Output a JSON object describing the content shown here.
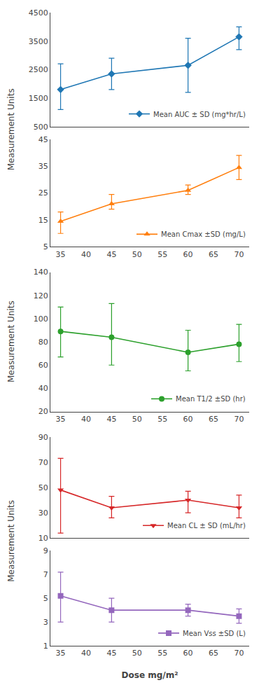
{
  "chart_data": [
    {
      "type": "line",
      "x": [
        35,
        45,
        60,
        70
      ],
      "xlim": [
        33,
        72
      ],
      "xticks": [
        35,
        40,
        45,
        50,
        55,
        60,
        65,
        70
      ],
      "ylim": [
        500,
        4500
      ],
      "yticks": [
        500,
        1500,
        2500,
        3500,
        4500
      ],
      "ylabel": "Measurement Units",
      "tick_labels": "y",
      "grid": false,
      "legend": "lower right",
      "series": [
        {
          "name": "Mean AUC ± SD (mg*hr/L)",
          "marker": "diamond",
          "values": [
            1800,
            2350,
            2650,
            3650
          ],
          "sd_upper": [
            2700,
            2900,
            3600,
            4000
          ],
          "sd_lower": [
            1100,
            1800,
            1700,
            3200
          ]
        }
      ]
    },
    {
      "type": "line",
      "x": [
        35,
        45,
        60,
        70
      ],
      "xlim": [
        33,
        72
      ],
      "xticks": [
        35,
        40,
        45,
        50,
        55,
        60,
        65,
        70
      ],
      "ylim": [
        5,
        45
      ],
      "yticks": [
        5,
        15,
        25,
        35,
        45
      ],
      "grid": false,
      "legend": "lower right",
      "series": [
        {
          "name": "Mean Cmax ±SD (mg/L)",
          "marker": "triangle-up",
          "values": [
            14.5,
            21,
            26,
            34.5
          ],
          "sd_upper": [
            18,
            24.5,
            28,
            39
          ],
          "sd_lower": [
            10,
            19,
            24.5,
            30
          ]
        }
      ]
    },
    {
      "type": "line",
      "x": [
        35,
        45,
        60,
        70
      ],
      "xlim": [
        33,
        72
      ],
      "xticks": [
        35,
        40,
        45,
        50,
        55,
        60,
        65,
        70
      ],
      "ylim": [
        20,
        140
      ],
      "yticks": [
        20,
        40,
        60,
        80,
        100,
        120,
        140
      ],
      "ylabel": "Measurement Units",
      "grid": false,
      "legend": "lower right",
      "series": [
        {
          "name": "Mean T1/2 ±SD (hr)",
          "marker": "circle",
          "values": [
            89,
            84,
            71,
            78
          ],
          "sd_upper": [
            110,
            113,
            90,
            95
          ],
          "sd_lower": [
            67,
            60,
            55,
            63
          ]
        }
      ]
    },
    {
      "type": "line",
      "x": [
        35,
        45,
        60,
        70
      ],
      "xlim": [
        33,
        72
      ],
      "xticks": [
        35,
        40,
        45,
        50,
        55,
        60,
        65,
        70
      ],
      "ylim": [
        10,
        90
      ],
      "yticks": [
        10,
        30,
        50,
        70,
        90
      ],
      "ylabel": "Measurement Units",
      "tick_labels": "y",
      "grid": false,
      "legend": "lower right",
      "series": [
        {
          "name": "Mean CL ± SD (mL/hr)",
          "marker": "triangle-down",
          "values": [
            48,
            34,
            40,
            34
          ],
          "sd_upper": [
            73,
            43,
            47,
            44
          ],
          "sd_lower": [
            14,
            26,
            30,
            26
          ]
        }
      ]
    },
    {
      "type": "line",
      "x": [
        35,
        45,
        60,
        70
      ],
      "xlim": [
        33,
        72
      ],
      "xticks": [
        35,
        40,
        45,
        50,
        55,
        60,
        65,
        70
      ],
      "ylim": [
        1,
        9
      ],
      "yticks": [
        1,
        3,
        5,
        7,
        9
      ],
      "xlabel": "Dose mg/m²",
      "grid": false,
      "legend": "lower right",
      "series": [
        {
          "name": "Mean Vss ±SD (L)",
          "marker": "square",
          "values": [
            5.2,
            4.0,
            4.0,
            3.5
          ],
          "sd_upper": [
            7.2,
            5.0,
            4.5,
            4.1
          ],
          "sd_lower": [
            3.0,
            3.0,
            3.5,
            2.9
          ]
        }
      ]
    }
  ]
}
